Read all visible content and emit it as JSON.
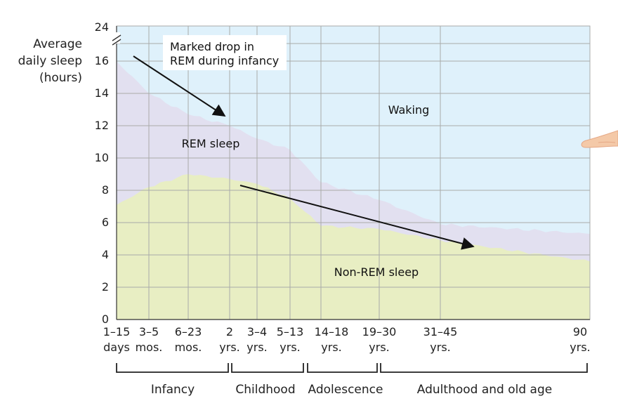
{
  "chart_data": {
    "type": "area",
    "ylabel_lines": [
      "Average",
      "daily sleep",
      "(hours)"
    ],
    "ylim": [
      0,
      24
    ],
    "y_ticks": [
      0,
      2,
      4,
      6,
      8,
      10,
      12,
      14,
      16,
      24
    ],
    "x_groups": [
      {
        "line1": "1–15",
        "line2": "days"
      },
      {
        "line1": "3–5",
        "line2": "mos."
      },
      {
        "line1": "6–23",
        "line2": "mos."
      },
      {
        "line1": "2",
        "line2": "yrs."
      },
      {
        "line1": "3–4",
        "line2": "yrs."
      },
      {
        "line1": "5–13",
        "line2": "yrs."
      },
      {
        "line1": "14–18",
        "line2": "yrs."
      },
      {
        "line1": "19–30",
        "line2": "yrs."
      },
      {
        "line1": "31–45",
        "line2": "yrs."
      },
      {
        "line1": "90",
        "line2": "yrs."
      }
    ],
    "life_stages": [
      "Infancy",
      "Childhood",
      "Adolescence",
      "Adulthood and old age"
    ],
    "series": [
      {
        "name": "Non-REM sleep",
        "values": [
          7.1,
          8.2,
          9.0,
          8.7,
          8.4,
          7.5,
          5.8,
          5.6,
          4.9,
          3.6
        ]
      },
      {
        "name": "REM sleep",
        "values": [
          16.0,
          14.0,
          12.7,
          12.0,
          11.2,
          10.5,
          8.5,
          7.4,
          5.9,
          5.3
        ]
      },
      {
        "name": "Waking",
        "values": [
          24,
          24,
          24,
          24,
          24,
          24,
          24,
          24,
          24,
          24
        ]
      }
    ],
    "annotations": [
      {
        "text_lines": [
          "Marked drop in",
          "REM during infancy"
        ]
      },
      {
        "text": "Waking"
      },
      {
        "text": "REM sleep"
      },
      {
        "text": "Non-REM sleep"
      }
    ],
    "colors": {
      "waking": "#dff1fb",
      "rem": "#e2e0f0",
      "nonrem": "#e8eec3",
      "grid": "#a9aaa9",
      "axis": "#333333"
    },
    "grid": true
  }
}
